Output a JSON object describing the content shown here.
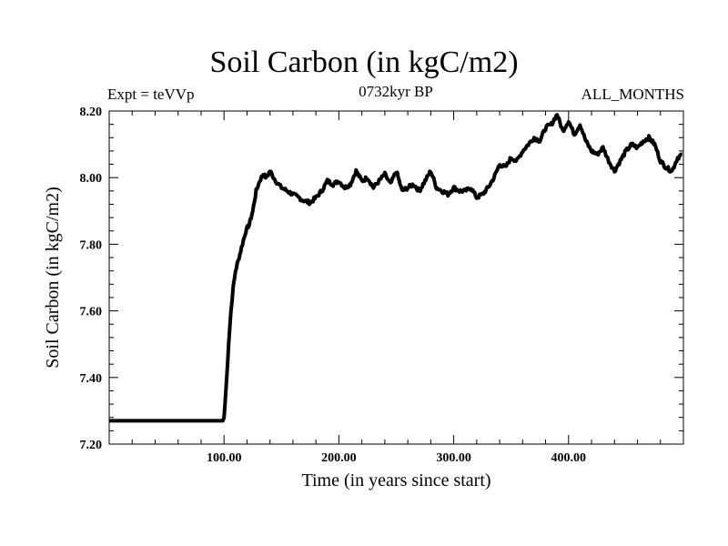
{
  "chart_data": {
    "type": "line",
    "title": "Soil Carbon (in kgC/m2)",
    "subtitle": "0732kyr BP",
    "left_label": "Expt = teVVp",
    "right_label": "ALL_MONTHS",
    "xlabel": "Time (in years since start)",
    "ylabel": "Soil Carbon (in kgC/m2)",
    "xlim": [
      0,
      500
    ],
    "ylim": [
      7.2,
      8.2
    ],
    "x_ticks": [
      100,
      200,
      300,
      400
    ],
    "x_tick_labels": [
      "100.00",
      "200.00",
      "300.00",
      "400.00"
    ],
    "y_ticks": [
      7.2,
      7.4,
      7.6,
      7.8,
      8.0,
      8.2
    ],
    "y_tick_labels": [
      "7.20",
      "7.40",
      "7.60",
      "7.80",
      "8.00",
      "8.20"
    ],
    "series": [
      {
        "name": "Soil Carbon",
        "x": [
          0,
          99,
          100,
          102,
          104,
          106,
          108,
          110,
          113,
          116,
          119,
          122,
          125,
          128,
          131,
          134,
          137,
          140,
          145,
          150,
          155,
          160,
          165,
          170,
          175,
          180,
          185,
          190,
          195,
          200,
          205,
          210,
          215,
          220,
          225,
          230,
          235,
          240,
          245,
          250,
          255,
          260,
          265,
          270,
          275,
          280,
          285,
          290,
          295,
          300,
          305,
          310,
          315,
          320,
          325,
          330,
          335,
          340,
          345,
          350,
          355,
          360,
          365,
          370,
          375,
          380,
          385,
          390,
          395,
          400,
          405,
          410,
          415,
          420,
          425,
          430,
          435,
          440,
          445,
          450,
          455,
          460,
          465,
          470,
          475,
          480,
          485,
          490,
          495,
          499
        ],
        "y": [
          7.27,
          7.27,
          7.28,
          7.38,
          7.5,
          7.6,
          7.67,
          7.72,
          7.76,
          7.8,
          7.84,
          7.86,
          7.9,
          7.96,
          7.99,
          8.01,
          8.0,
          8.02,
          7.99,
          7.97,
          7.96,
          7.95,
          7.94,
          7.93,
          7.925,
          7.94,
          7.96,
          7.99,
          7.98,
          7.99,
          7.97,
          7.98,
          8.02,
          7.99,
          8.0,
          7.97,
          7.99,
          8.01,
          7.98,
          8.02,
          7.96,
          7.97,
          7.98,
          7.96,
          7.99,
          8.02,
          7.97,
          7.96,
          7.95,
          7.97,
          7.96,
          7.96,
          7.97,
          7.94,
          7.95,
          7.97,
          8.0,
          8.04,
          8.03,
          8.06,
          8.05,
          8.08,
          8.1,
          8.12,
          8.11,
          8.15,
          8.16,
          8.19,
          8.14,
          8.17,
          8.13,
          8.16,
          8.11,
          8.08,
          8.07,
          8.09,
          8.05,
          8.02,
          8.05,
          8.08,
          8.1,
          8.09,
          8.11,
          8.12,
          8.1,
          8.05,
          8.03,
          8.02,
          8.06,
          8.07
        ]
      }
    ]
  }
}
